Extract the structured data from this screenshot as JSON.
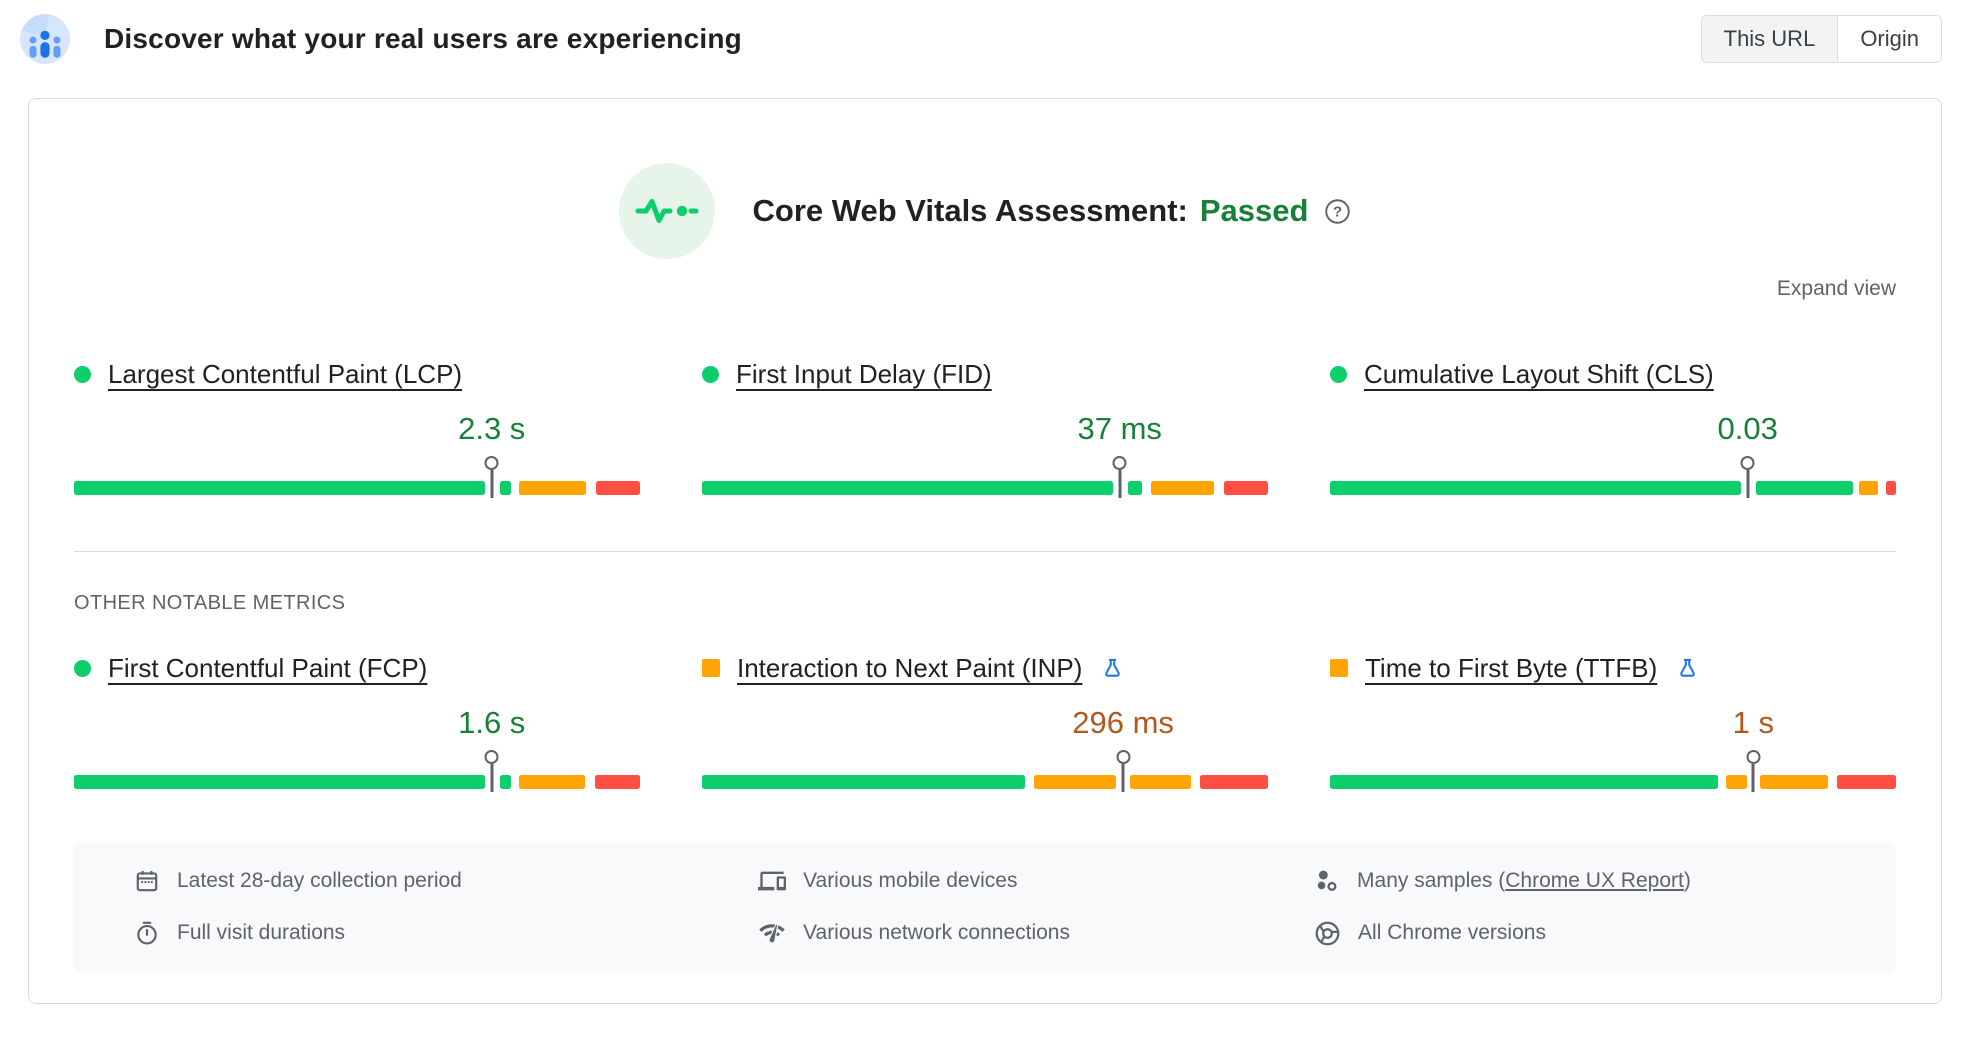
{
  "header": {
    "title": "Discover what your real users are experiencing",
    "toggle": {
      "this_url": "This URL",
      "origin": "Origin",
      "selected": "This URL"
    }
  },
  "assessment": {
    "label": "Core Web Vitals Assessment:",
    "status": "Passed"
  },
  "expand_view_label": "Expand view",
  "other_metrics_label": "OTHER NOTABLE METRICS",
  "colors": {
    "good_bar": "#0cce6b",
    "average_bar": "#ffa400",
    "poor_bar": "#ff4e42",
    "good_text": "#188038",
    "average_text": "#b0591f",
    "experimental_blue": "#1a73e8"
  },
  "core_metrics": [
    {
      "id": "lcp",
      "title": "Largest Contentful Paint (LCP)",
      "rating": "good",
      "experimental": false,
      "value": "2.3 s",
      "pin_pct": 73.8,
      "segments": [
        {
          "color": "good",
          "start": 0,
          "end": 72.6
        },
        {
          "color": "good",
          "start": 75.2,
          "end": 77.2
        },
        {
          "color": "average",
          "start": 78.7,
          "end": 90.5
        },
        {
          "color": "poor",
          "start": 92.2,
          "end": 100
        }
      ]
    },
    {
      "id": "fid",
      "title": "First Input Delay (FID)",
      "rating": "good",
      "experimental": false,
      "value": "37 ms",
      "pin_pct": 73.8,
      "segments": [
        {
          "color": "good",
          "start": 0,
          "end": 72.6
        },
        {
          "color": "good",
          "start": 75.2,
          "end": 77.8
        },
        {
          "color": "average",
          "start": 79.3,
          "end": 90.5
        },
        {
          "color": "poor",
          "start": 92.2,
          "end": 100
        }
      ]
    },
    {
      "id": "cls",
      "title": "Cumulative Layout Shift (CLS)",
      "rating": "good",
      "experimental": false,
      "value": "0.03",
      "pin_pct": 73.8,
      "segments": [
        {
          "color": "good",
          "start": 0,
          "end": 72.6
        },
        {
          "color": "good",
          "start": 75.2,
          "end": 92.4
        },
        {
          "color": "average",
          "start": 93.4,
          "end": 96.9
        },
        {
          "color": "poor",
          "start": 98.3,
          "end": 100
        }
      ]
    }
  ],
  "other_metrics": [
    {
      "id": "fcp",
      "title": "First Contentful Paint (FCP)",
      "rating": "good",
      "experimental": false,
      "value": "1.6 s",
      "pin_pct": 73.8,
      "segments": [
        {
          "color": "good",
          "start": 0,
          "end": 72.6
        },
        {
          "color": "good",
          "start": 75.2,
          "end": 77.2
        },
        {
          "color": "average",
          "start": 78.7,
          "end": 90.3
        },
        {
          "color": "poor",
          "start": 92.0,
          "end": 100
        }
      ]
    },
    {
      "id": "inp",
      "title": "Interaction to Next Paint (INP)",
      "rating": "average",
      "experimental": true,
      "value": "296 ms",
      "pin_pct": 74.4,
      "segments": [
        {
          "color": "good",
          "start": 0,
          "end": 57.0
        },
        {
          "color": "average",
          "start": 58.6,
          "end": 73.2
        },
        {
          "color": "average",
          "start": 75.6,
          "end": 86.4
        },
        {
          "color": "poor",
          "start": 88.0,
          "end": 100
        }
      ]
    },
    {
      "id": "ttfb",
      "title": "Time to First Byte (TTFB)",
      "rating": "average",
      "experimental": true,
      "value": "1 s",
      "pin_pct": 74.8,
      "segments": [
        {
          "color": "good",
          "start": 0,
          "end": 68.6
        },
        {
          "color": "average",
          "start": 70.0,
          "end": 73.6
        },
        {
          "color": "average",
          "start": 76.0,
          "end": 88.0
        },
        {
          "color": "poor",
          "start": 89.6,
          "end": 100
        }
      ]
    }
  ],
  "footer": {
    "collection_period": "Latest 28-day collection period",
    "visit_durations": "Full visit durations",
    "devices": "Various mobile devices",
    "connections": "Various network connections",
    "samples_prefix": "Many samples (",
    "samples_link": "Chrome UX Report",
    "samples_suffix": ")",
    "chrome_versions": "All Chrome versions"
  }
}
